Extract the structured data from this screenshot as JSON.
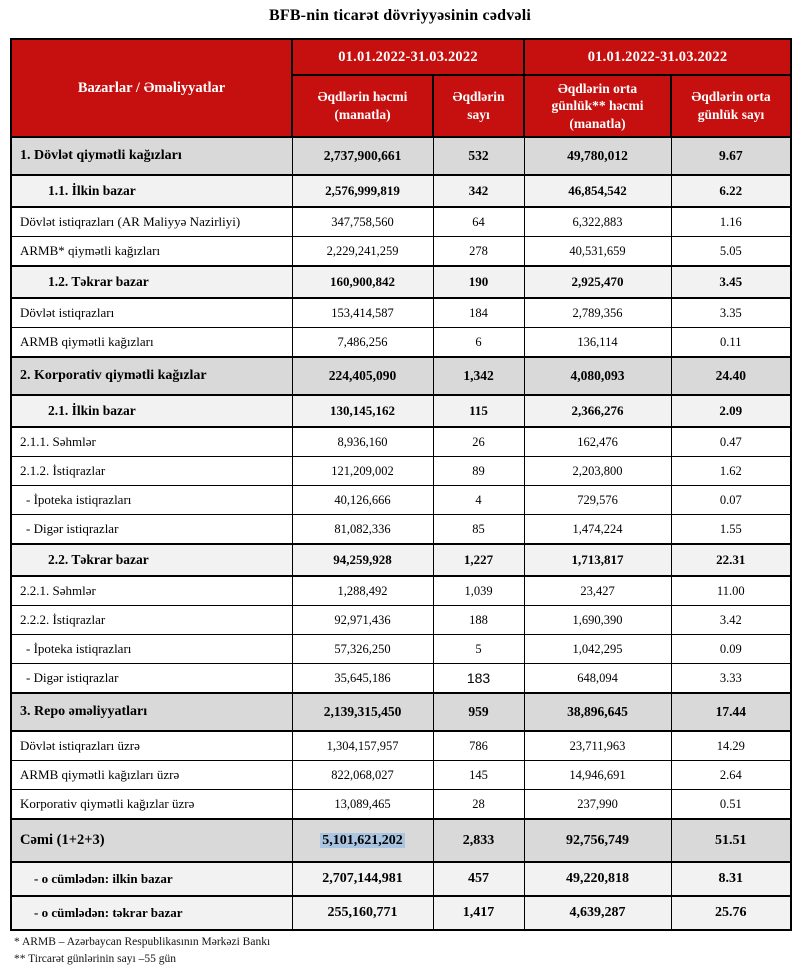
{
  "title": "BFB-nin ticarət dövriyyəsinin cədvəli",
  "table": {
    "header": {
      "label_col": "Bazarlar / Əməliyyatlar",
      "period_1": "01.01.2022-31.03.2022",
      "period_2": "01.01.2022-31.03.2022",
      "cols": [
        "Əqdlərin həcmi (manatla)",
        "Əqdlərin sayı",
        "Əqdlərin orta günlük** həcmi (manatla)",
        "Əqdlərin orta günlük sayı"
      ]
    },
    "rows": [
      {
        "label": "1. Dövlət qiymətli kağızları",
        "style": "section",
        "values": [
          "2,737,900,661",
          "532",
          "49,780,012",
          "9.67"
        ]
      },
      {
        "label": "1.1. İlkin bazar",
        "style": "subsection",
        "values": [
          "2,576,999,819",
          "342",
          "46,854,542",
          "6.22"
        ]
      },
      {
        "label": "Dövlət istiqrazları (AR Maliyyə Nazirliyi)",
        "style": "normal",
        "values": [
          "347,758,560",
          "64",
          "6,322,883",
          "1.16"
        ]
      },
      {
        "label": "ARMB* qiymətli kağızları",
        "style": "normal",
        "values": [
          "2,229,241,259",
          "278",
          "40,531,659",
          "5.05"
        ]
      },
      {
        "label": "1.2. Təkrar bazar",
        "style": "subsection",
        "values": [
          "160,900,842",
          "190",
          "2,925,470",
          "3.45"
        ]
      },
      {
        "label": "Dövlət istiqrazları",
        "style": "normal",
        "values": [
          "153,414,587",
          "184",
          "2,789,356",
          "3.35"
        ]
      },
      {
        "label": "ARMB qiymətli kağızları",
        "style": "normal",
        "values": [
          "7,486,256",
          "6",
          "136,114",
          "0.11"
        ]
      },
      {
        "label": "2. Korporativ qiymətli kağızlar",
        "style": "section",
        "values": [
          "224,405,090",
          "1,342",
          "4,080,093",
          "24.40"
        ]
      },
      {
        "label": "2.1. İlkin bazar",
        "style": "subsection",
        "values": [
          "130,145,162",
          "115",
          "2,366,276",
          "2.09"
        ]
      },
      {
        "label": "2.1.1. Səhmlər",
        "style": "normal",
        "values": [
          "8,936,160",
          "26",
          "162,476",
          "0.47"
        ]
      },
      {
        "label": "2.1.2. İstiqrazlar",
        "style": "normal",
        "values": [
          "121,209,002",
          "89",
          "2,203,800",
          "1.62"
        ]
      },
      {
        "label": "- İpoteka istiqrazları",
        "style": "normal dash",
        "values": [
          "40,126,666",
          "4",
          "729,576",
          "0.07"
        ]
      },
      {
        "label": "- Digər istiqrazlar",
        "style": "normal dash",
        "values": [
          "81,082,336",
          "85",
          "1,474,224",
          "1.55"
        ]
      },
      {
        "label": "2.2. Təkrar bazar",
        "style": "subsection",
        "values": [
          "94,259,928",
          "1,227",
          "1,713,817",
          "22.31"
        ]
      },
      {
        "label": "2.2.1. Səhmlər",
        "style": "normal",
        "values": [
          "1,288,492",
          "1,039",
          "23,427",
          "11.00"
        ]
      },
      {
        "label": "2.2.2. İstiqrazlar",
        "style": "normal",
        "values": [
          "92,971,436",
          "188",
          "1,690,390",
          "3.42"
        ]
      },
      {
        "label": "- İpoteka istiqrazları",
        "style": "normal dash",
        "values": [
          "57,326,250",
          "5",
          "1,042,295",
          "0.09"
        ]
      },
      {
        "label": "- Digər istiqrazlar",
        "style": "normal dash",
        "values": [
          "35,645,186",
          "183",
          "648,094",
          "3.33"
        ],
        "sans_cell": 1
      },
      {
        "label": "3. Repo əməliyyatları",
        "style": "section",
        "values": [
          "2,139,315,450",
          "959",
          "38,896,645",
          "17.44"
        ]
      },
      {
        "label": "Dövlət istiqrazları üzrə",
        "style": "normal",
        "values": [
          "1,304,157,957",
          "786",
          "23,711,963",
          "14.29"
        ]
      },
      {
        "label": "ARMB qiymətli kağızları üzrə",
        "style": "normal",
        "values": [
          "822,068,027",
          "145",
          "14,946,691",
          "2.64"
        ]
      },
      {
        "label": "Korporativ qiymətli kağızlar üzrə",
        "style": "normal",
        "values": [
          "13,089,465",
          "28",
          "237,990",
          "0.51"
        ]
      },
      {
        "label": "Cəmi (1+2+3)",
        "style": "total",
        "values": [
          "5,101,621,202",
          "2,833",
          "92,756,749",
          "51.51"
        ],
        "highlight_cell": 0
      },
      {
        "label": "- o cümlədən: ilkin bazar",
        "style": "total-sub",
        "values": [
          "2,707,144,981",
          "457",
          "49,220,818",
          "8.31"
        ]
      },
      {
        "label": "- o cümlədən: təkrar bazar",
        "style": "total-sub",
        "values": [
          "255,160,771",
          "1,417",
          "4,639,287",
          "25.76"
        ]
      }
    ]
  },
  "footnotes": [
    "* ARMB – Azərbaycan Respublikasının Mərkəzi Bankı",
    "** Tircarət günlərinin sayı –55 gün"
  ],
  "colors": {
    "header_red": "#C6100F",
    "section_gray": "#D9D9D9",
    "subsection_gray": "#F2F2F2",
    "highlight_blue": "#A9C5E2",
    "border_black": "#000000"
  }
}
